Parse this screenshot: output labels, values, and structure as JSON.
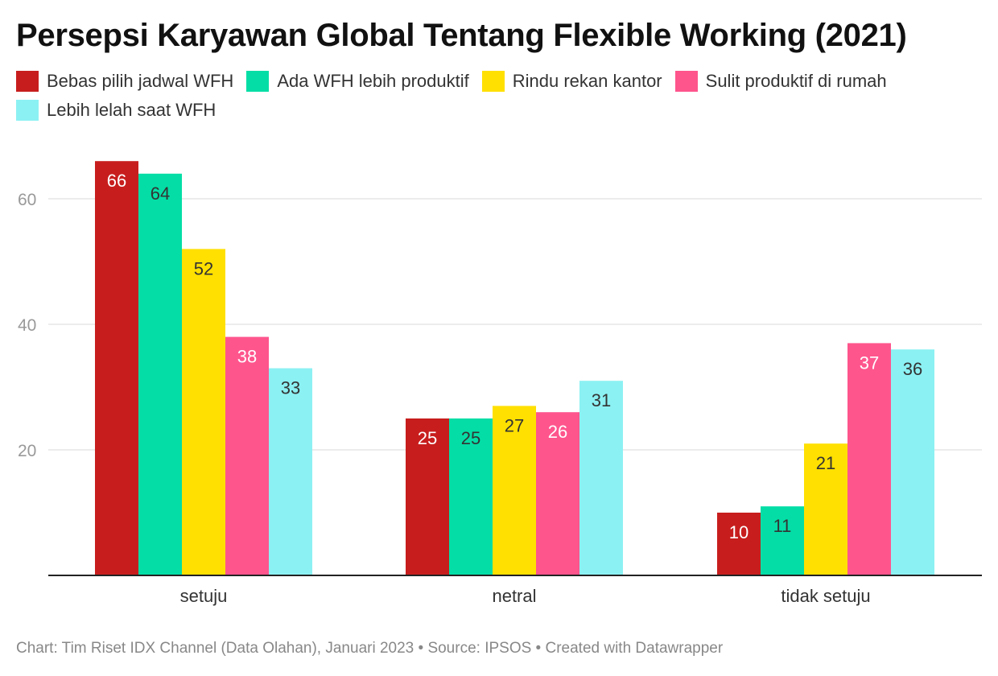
{
  "title": "Persepsi Karyawan Global Tentang Flexible Working (2021)",
  "footer": "Chart: Tim Riset IDX Channel (Data Olahan), Januari 2023 • Source: IPSOS • Created with Datawrapper",
  "chart_data": {
    "type": "bar",
    "title": "Persepsi Karyawan Global Tentang Flexible Working (2021)",
    "categories": [
      "setuju",
      "netral",
      "tidak setuju"
    ],
    "series": [
      {
        "name": "Bebas pilih jadwal WFH",
        "color": "#c71e1d",
        "values": [
          66,
          25,
          10
        ]
      },
      {
        "name": "Ada WFH lebih produktif",
        "color": "#04dea6",
        "values": [
          64,
          25,
          11
        ]
      },
      {
        "name": "Rindu rekan kantor",
        "color": "#ffe000",
        "values": [
          52,
          27,
          21
        ]
      },
      {
        "name": "Sulit produktif di rumah",
        "color": "#fe558d",
        "values": [
          38,
          26,
          37
        ]
      },
      {
        "name": "Lebih lelah saat WFH",
        "color": "#8cf1f3",
        "values": [
          33,
          31,
          36
        ]
      }
    ],
    "yticks": [
      20,
      40,
      60
    ],
    "ylim": [
      0,
      70
    ],
    "grid": true,
    "legend": "top-left",
    "xlabel": "",
    "ylabel": ""
  }
}
